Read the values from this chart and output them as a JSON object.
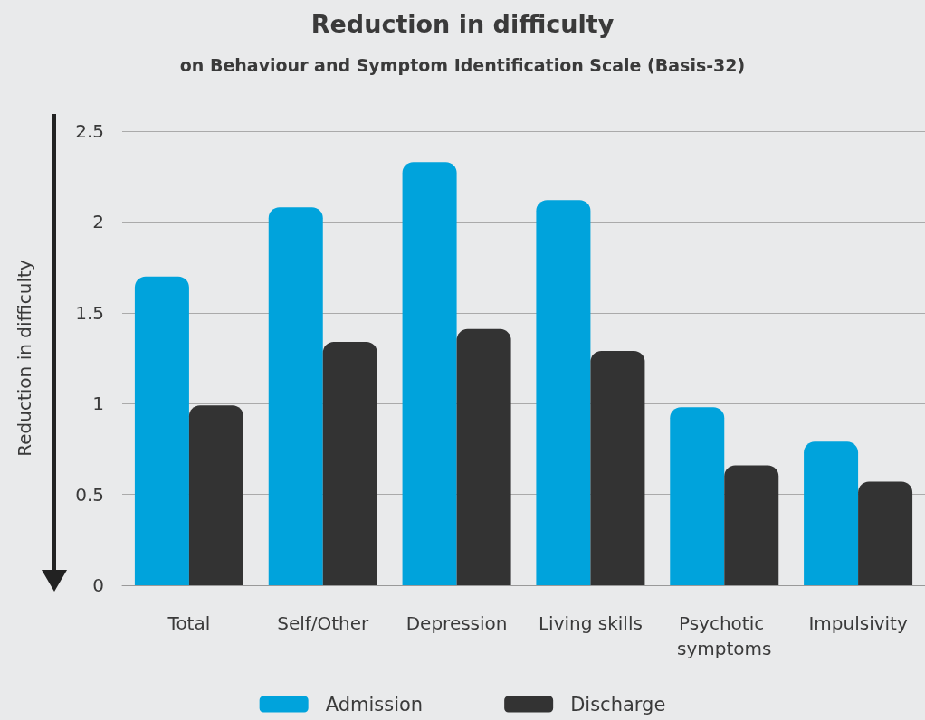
{
  "chart_data": {
    "type": "bar",
    "title": "Reduction in difficulty",
    "subtitle": "on Behaviour and Symptom Identification Scale (Basis-32)",
    "ylabel": "Reduction in difficulty",
    "categories": [
      "Total",
      "Self/Other",
      "Depression",
      "Living skills",
      "Psychotic symptoms",
      "Impulsivity"
    ],
    "series": [
      {
        "name": "Admission",
        "color": "#00a3dc",
        "values": [
          1.7,
          2.08,
          2.33,
          2.12,
          0.98,
          0.79
        ]
      },
      {
        "name": "Discharge",
        "color": "#333333",
        "values": [
          0.99,
          1.34,
          1.41,
          1.29,
          0.66,
          0.57
        ]
      }
    ],
    "ylim": [
      0,
      2.5
    ],
    "yticks": [
      0,
      0.5,
      1,
      1.5,
      2,
      2.5
    ],
    "grid": "y",
    "legend": "bottom"
  }
}
